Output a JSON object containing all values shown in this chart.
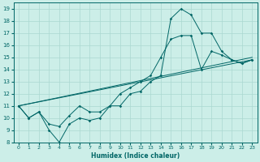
{
  "xlabel": "Humidex (Indice chaleur)",
  "bg_color": "#cceee8",
  "grid_color": "#aad8d0",
  "line_color": "#006666",
  "xlim": [
    -0.5,
    23.5
  ],
  "ylim": [
    8,
    19.5
  ],
  "xticks": [
    0,
    1,
    2,
    3,
    4,
    5,
    6,
    7,
    8,
    9,
    10,
    11,
    12,
    13,
    14,
    15,
    16,
    17,
    18,
    19,
    20,
    21,
    22,
    23
  ],
  "yticks": [
    8,
    9,
    10,
    11,
    12,
    13,
    14,
    15,
    16,
    17,
    18,
    19
  ],
  "line1_x": [
    0,
    1,
    2,
    3,
    4,
    5,
    6,
    7,
    8,
    9,
    10,
    11,
    12,
    13,
    14,
    15,
    16,
    17,
    18,
    19,
    20,
    21,
    22,
    23
  ],
  "line1_y": [
    11,
    10,
    10.5,
    9.0,
    8.0,
    9.5,
    10.0,
    9.8,
    10.0,
    11.0,
    11.0,
    12.0,
    12.2,
    13.0,
    13.5,
    18.2,
    19.0,
    18.5,
    17.0,
    17.0,
    15.5,
    14.8,
    14.5,
    14.8
  ],
  "line2_x": [
    0,
    1,
    2,
    3,
    4,
    5,
    6,
    7,
    8,
    9,
    10,
    11,
    12,
    13,
    14,
    15,
    16,
    17,
    18,
    19,
    20,
    21,
    22,
    23
  ],
  "line2_y": [
    11,
    10,
    10.5,
    9.5,
    9.3,
    10.2,
    11.0,
    10.5,
    10.5,
    11.0,
    12.0,
    12.5,
    13.0,
    13.5,
    15.0,
    16.5,
    16.8,
    16.8,
    14.0,
    15.5,
    15.2,
    14.8,
    14.5,
    14.8
  ],
  "line3_x": [
    0,
    23
  ],
  "line3_y": [
    11,
    14.8
  ],
  "line4_x": [
    0,
    23
  ],
  "line4_y": [
    11,
    15.0
  ]
}
